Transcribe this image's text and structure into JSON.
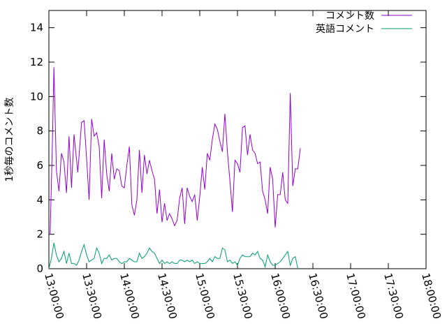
{
  "chart_data": {
    "type": "line",
    "title": "",
    "ylabel": "1秒毎のコメント数",
    "xlabel": "",
    "xlim": [
      "13:00:00",
      "18:00:00"
    ],
    "ylim": [
      0,
      15
    ],
    "y_ticks": [
      0,
      2,
      4,
      6,
      8,
      10,
      12,
      14
    ],
    "x_ticks": [
      "13:00:00",
      "13:30:00",
      "14:00:00",
      "14:30:00",
      "15:00:00",
      "15:30:00",
      "16:00:00",
      "16:30:00",
      "17:00:00",
      "17:30:00",
      "18:00:00"
    ],
    "grid": false,
    "legend": "top-right",
    "series": [
      {
        "name": "コメント数",
        "color": "#9400d3",
        "points": [
          [
            "13:00:00",
            2.0
          ],
          [
            "13:01:00",
            2.0
          ],
          [
            "13:03:00",
            8.0
          ],
          [
            "13:04:00",
            11.7
          ],
          [
            "13:06:00",
            5.7
          ],
          [
            "13:08:00",
            4.5
          ],
          [
            "13:10:00",
            6.7
          ],
          [
            "13:12:00",
            6.2
          ],
          [
            "13:14:00",
            4.4
          ],
          [
            "13:16:00",
            7.7
          ],
          [
            "13:18:00",
            4.7
          ],
          [
            "13:20:00",
            7.8
          ],
          [
            "13:23:00",
            5.6
          ],
          [
            "13:26:00",
            8.5
          ],
          [
            "13:28:00",
            8.6
          ],
          [
            "13:30:00",
            6.4
          ],
          [
            "13:32:00",
            4.0
          ],
          [
            "13:34:00",
            8.7
          ],
          [
            "13:36:00",
            7.7
          ],
          [
            "13:38:00",
            7.9
          ],
          [
            "13:40:00",
            7.1
          ],
          [
            "13:42:00",
            4.1
          ],
          [
            "13:44:00",
            7.5
          ],
          [
            "13:46:00",
            5.5
          ],
          [
            "13:48:00",
            4.5
          ],
          [
            "13:50:00",
            6.7
          ],
          [
            "13:52:00",
            5.2
          ],
          [
            "13:54:00",
            5.8
          ],
          [
            "13:56:00",
            5.7
          ],
          [
            "13:58:00",
            4.8
          ],
          [
            "14:00:00",
            4.7
          ],
          [
            "14:02:00",
            6.0
          ],
          [
            "14:04:00",
            7.1
          ],
          [
            "14:06:00",
            3.7
          ],
          [
            "14:08:00",
            3.1
          ],
          [
            "14:10:00",
            4.0
          ],
          [
            "14:12:00",
            6.9
          ],
          [
            "14:14:00",
            4.4
          ],
          [
            "14:16:00",
            6.6
          ],
          [
            "14:18:00",
            5.5
          ],
          [
            "14:20:00",
            6.3
          ],
          [
            "14:22:00",
            5.7
          ],
          [
            "14:24:00",
            5.2
          ],
          [
            "14:26:00",
            3.2
          ],
          [
            "14:28:00",
            4.6
          ],
          [
            "14:30:00",
            2.7
          ],
          [
            "14:32:00",
            3.8
          ],
          [
            "14:34:00",
            2.8
          ],
          [
            "14:36:00",
            3.2
          ],
          [
            "14:38:00",
            2.9
          ],
          [
            "14:40:00",
            2.5
          ],
          [
            "14:42:00",
            2.8
          ],
          [
            "14:44:00",
            4.1
          ],
          [
            "14:46:00",
            4.7
          ],
          [
            "14:48:00",
            2.6
          ],
          [
            "14:50:00",
            4.7
          ],
          [
            "14:52:00",
            4.2
          ],
          [
            "14:54:00",
            3.9
          ],
          [
            "14:56:00",
            4.3
          ],
          [
            "14:58:00",
            2.8
          ],
          [
            "15:00:00",
            4.2
          ],
          [
            "15:02:00",
            5.9
          ],
          [
            "15:04:00",
            4.6
          ],
          [
            "15:06:00",
            6.7
          ],
          [
            "15:08:00",
            6.3
          ],
          [
            "15:10:00",
            7.5
          ],
          [
            "15:12:00",
            8.4
          ],
          [
            "15:14:00",
            8.1
          ],
          [
            "15:16:00",
            7.4
          ],
          [
            "15:18:00",
            6.8
          ],
          [
            "15:20:00",
            9.0
          ],
          [
            "15:22:00",
            6.8
          ],
          [
            "15:24:00",
            5.1
          ],
          [
            "15:26:00",
            3.3
          ],
          [
            "15:28:00",
            6.3
          ],
          [
            "15:30:00",
            6.1
          ],
          [
            "15:32:00",
            5.6
          ],
          [
            "15:34:00",
            8.2
          ],
          [
            "15:36:00",
            8.3
          ],
          [
            "15:38:00",
            6.6
          ],
          [
            "15:40:00",
            7.8
          ],
          [
            "15:42:00",
            6.9
          ],
          [
            "15:44:00",
            6.7
          ],
          [
            "15:46:00",
            6.1
          ],
          [
            "15:48:00",
            6.2
          ],
          [
            "15:50:00",
            4.5
          ],
          [
            "15:52:00",
            4.0
          ],
          [
            "15:54:00",
            3.2
          ],
          [
            "15:56:00",
            5.9
          ],
          [
            "15:58:00",
            5.2
          ],
          [
            "16:00:00",
            2.4
          ],
          [
            "16:02:00",
            4.3
          ],
          [
            "16:04:00",
            4.3
          ],
          [
            "16:06:00",
            5.6
          ],
          [
            "16:08:00",
            4.0
          ],
          [
            "16:10:00",
            3.8
          ],
          [
            "16:12:00",
            10.2
          ],
          [
            "16:14:00",
            4.8
          ],
          [
            "16:16:00",
            5.8
          ],
          [
            "16:18:00",
            5.8
          ],
          [
            "16:20:00",
            7.0
          ]
        ]
      },
      {
        "name": "英語コメント",
        "color": "#009e73",
        "points": [
          [
            "13:00:00",
            0.0
          ],
          [
            "13:02:00",
            0.6
          ],
          [
            "13:04:00",
            1.5
          ],
          [
            "13:06:00",
            0.8
          ],
          [
            "13:08:00",
            0.4
          ],
          [
            "13:10:00",
            0.6
          ],
          [
            "13:12:00",
            1.0
          ],
          [
            "13:14:00",
            0.3
          ],
          [
            "13:16:00",
            0.9
          ],
          [
            "13:18:00",
            0.3
          ],
          [
            "13:20:00",
            0.3
          ],
          [
            "13:22:00",
            0.2
          ],
          [
            "13:24:00",
            0.5
          ],
          [
            "13:26:00",
            1.0
          ],
          [
            "13:28:00",
            1.4
          ],
          [
            "13:30:00",
            0.8
          ],
          [
            "13:32:00",
            0.4
          ],
          [
            "13:34:00",
            0.5
          ],
          [
            "13:36:00",
            0.6
          ],
          [
            "13:38:00",
            1.2
          ],
          [
            "13:40:00",
            0.9
          ],
          [
            "13:42:00",
            0.3
          ],
          [
            "13:44:00",
            0.6
          ],
          [
            "13:46:00",
            0.6
          ],
          [
            "13:48:00",
            0.8
          ],
          [
            "13:50:00",
            0.5
          ],
          [
            "13:52:00",
            0.6
          ],
          [
            "13:54:00",
            0.6
          ],
          [
            "13:56:00",
            0.4
          ],
          [
            "13:58:00",
            0.3
          ],
          [
            "14:00:00",
            0.4
          ],
          [
            "14:02:00",
            0.4
          ],
          [
            "14:04:00",
            0.6
          ],
          [
            "14:06:00",
            0.5
          ],
          [
            "14:08:00",
            0.4
          ],
          [
            "14:10:00",
            0.4
          ],
          [
            "14:12:00",
            0.9
          ],
          [
            "14:14:00",
            0.6
          ],
          [
            "14:16:00",
            0.7
          ],
          [
            "14:18:00",
            0.9
          ],
          [
            "14:20:00",
            1.2
          ],
          [
            "14:22:00",
            1.0
          ],
          [
            "14:24:00",
            0.9
          ],
          [
            "14:26:00",
            0.6
          ],
          [
            "14:28:00",
            0.3
          ],
          [
            "14:30:00",
            0.5
          ],
          [
            "14:32:00",
            0.3
          ],
          [
            "14:34:00",
            0.4
          ],
          [
            "14:36:00",
            0.3
          ],
          [
            "14:38:00",
            0.4
          ],
          [
            "14:40:00",
            0.3
          ],
          [
            "14:42:00",
            0.3
          ],
          [
            "14:44:00",
            0.5
          ],
          [
            "14:46:00",
            0.5
          ],
          [
            "14:48:00",
            0.4
          ],
          [
            "14:50:00",
            0.5
          ],
          [
            "14:52:00",
            0.4
          ],
          [
            "14:54:00",
            0.5
          ],
          [
            "14:56:00",
            0.3
          ],
          [
            "14:58:00",
            0.4
          ],
          [
            "15:00:00",
            0.3
          ],
          [
            "15:02:00",
            0.3
          ],
          [
            "15:04:00",
            0.3
          ],
          [
            "15:06:00",
            0.4
          ],
          [
            "15:08:00",
            0.6
          ],
          [
            "15:10:00",
            0.4
          ],
          [
            "15:12:00",
            0.7
          ],
          [
            "15:14:00",
            0.6
          ],
          [
            "15:16:00",
            0.6
          ],
          [
            "15:18:00",
            1.2
          ],
          [
            "15:20:00",
            1.1
          ],
          [
            "15:22:00",
            0.4
          ],
          [
            "15:24:00",
            0.5
          ],
          [
            "15:26:00",
            0.3
          ],
          [
            "15:28:00",
            0.4
          ],
          [
            "15:30:00",
            0.2
          ],
          [
            "15:32:00",
            0.6
          ],
          [
            "15:34:00",
            0.8
          ],
          [
            "15:36:00",
            0.7
          ],
          [
            "15:38:00",
            0.7
          ],
          [
            "15:40:00",
            0.7
          ],
          [
            "15:42:00",
            0.9
          ],
          [
            "15:44:00",
            0.8
          ],
          [
            "15:46:00",
            1.0
          ],
          [
            "15:48:00",
            0.6
          ],
          [
            "15:50:00",
            0.5
          ],
          [
            "15:52:00",
            0.1
          ],
          [
            "15:54:00",
            0.8
          ],
          [
            "15:56:00",
            0.4
          ],
          [
            "15:58:00",
            0.2
          ],
          [
            "16:00:00",
            0.2
          ],
          [
            "16:02:00",
            0.3
          ],
          [
            "16:04:00",
            0.4
          ],
          [
            "16:06:00",
            0.6
          ],
          [
            "16:08:00",
            0.8
          ],
          [
            "16:10:00",
            1.0
          ],
          [
            "16:12:00",
            0.2
          ],
          [
            "16:14:00",
            0.6
          ],
          [
            "16:16:00",
            0.7
          ],
          [
            "16:18:00",
            0.0
          ]
        ]
      }
    ]
  }
}
